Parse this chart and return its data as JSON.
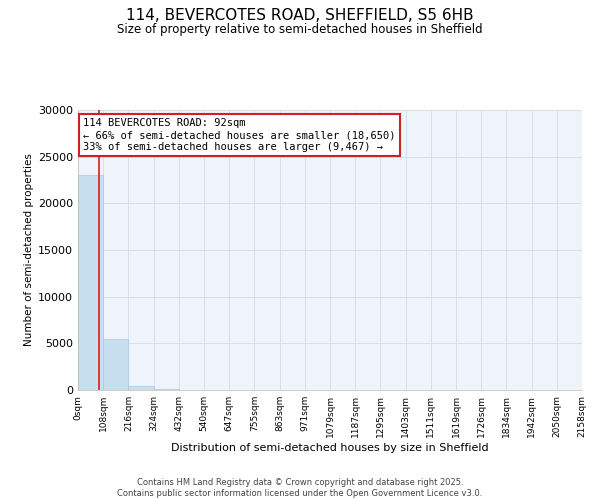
{
  "title": "114, BEVERCOTES ROAD, SHEFFIELD, S5 6HB",
  "subtitle": "Size of property relative to semi-detached houses in Sheffield",
  "xlabel": "Distribution of semi-detached houses by size in Sheffield",
  "ylabel": "Number of semi-detached properties",
  "property_size": 92,
  "annotation_line1": "114 BEVERCOTES ROAD: 92sqm",
  "annotation_line2": "← 66% of semi-detached houses are smaller (18,650)",
  "annotation_line3": "33% of semi-detached houses are larger (9,467) →",
  "bin_edges": [
    0,
    108,
    216,
    324,
    432,
    540,
    647,
    755,
    863,
    971,
    1079,
    1187,
    1295,
    1403,
    1511,
    1619,
    1726,
    1834,
    1942,
    2050,
    2158
  ],
  "bin_heights": [
    23000,
    5500,
    400,
    60,
    20,
    10,
    5,
    3,
    2,
    1,
    1,
    0,
    0,
    0,
    0,
    0,
    0,
    0,
    0,
    0
  ],
  "bar_color": "#c8dff0",
  "bar_edge_color": "#a8c8e8",
  "vline_color": "#cc2222",
  "annotation_edge_color": "#cc2222",
  "ylim": [
    0,
    30000
  ],
  "yticks": [
    0,
    5000,
    10000,
    15000,
    20000,
    25000,
    30000
  ],
  "grid_color": "#d0dce8",
  "bg_color": "#eef4fa",
  "footer_line1": "Contains HM Land Registry data © Crown copyright and database right 2025.",
  "footer_line2": "Contains public sector information licensed under the Open Government Licence v3.0."
}
